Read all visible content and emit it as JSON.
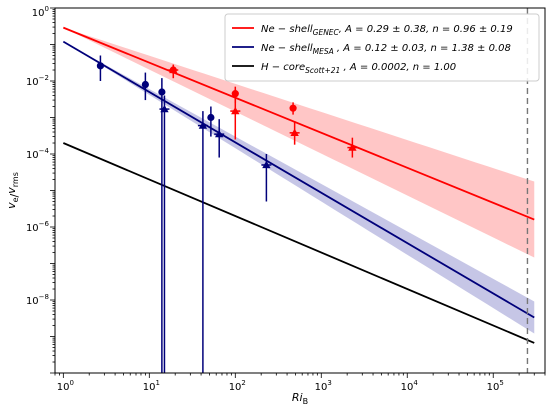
{
  "chart_data": {
    "type": "scatter",
    "title": "",
    "xlabel": "Ri_B",
    "ylabel": "v_e/v_rms",
    "xscale": "log",
    "yscale": "log",
    "xlim": [
      0.8,
      400000
    ],
    "ylim": [
      1e-10,
      1
    ],
    "x_ticks": [
      {
        "value": 1,
        "base": "10",
        "exp": "0"
      },
      {
        "value": 10,
        "base": "10",
        "exp": "1"
      },
      {
        "value": 100,
        "base": "10",
        "exp": "2"
      },
      {
        "value": 1000,
        "base": "10",
        "exp": "3"
      },
      {
        "value": 10000,
        "base": "10",
        "exp": "4"
      },
      {
        "value": 100000,
        "base": "10",
        "exp": "5"
      }
    ],
    "y_ticks": [
      {
        "value": 1e-08,
        "base": "10",
        "exp": "−8"
      },
      {
        "value": 1e-06,
        "base": "10",
        "exp": "−6"
      },
      {
        "value": 0.0001,
        "base": "10",
        "exp": "−4"
      },
      {
        "value": 0.01,
        "base": "10",
        "exp": "−2"
      },
      {
        "value": 1,
        "base": "10",
        "exp": "0"
      }
    ],
    "vertical_marker_x": 250000,
    "legend_position": "top-right",
    "series": [
      {
        "name": "Ne − shell GENEC , A = 0.29 ± 0.38, n = 0.96 ± 0.19",
        "legend_main": "Ne − shell",
        "legend_sub": "GENEC",
        "legend_rest": ", A = 0.29 ± 0.38, n = 0.96 ± 0.19",
        "color": "#ff0000",
        "band_color": "#ffb3b3",
        "fit": {
          "A": 0.29,
          "n": 0.96,
          "x_range": [
            1,
            300000
          ]
        },
        "band": {
          "n_low": 0.77,
          "n_high": 1.15
        },
        "points": [
          {
            "x": 19,
            "y": 0.02,
            "marker": "circle",
            "yerr_lo": 0.012,
            "yerr_hi": 0.028
          },
          {
            "x": 100,
            "y": 0.0045,
            "marker": "circle",
            "yerr_lo": 0.0025,
            "yerr_hi": 0.007
          },
          {
            "x": 470,
            "y": 0.0018,
            "marker": "circle",
            "yerr_lo": 0.0012,
            "yerr_hi": 0.0026
          },
          {
            "x": 19,
            "y": 0.02,
            "marker": "triangle",
            "yerr_lo": 0.012,
            "yerr_hi": 0.028
          },
          {
            "x": 100,
            "y": 0.0015,
            "marker": "triangle",
            "yerr_lo": 0.00025,
            "yerr_hi": 0.006
          },
          {
            "x": 490,
            "y": 0.00038,
            "marker": "triangle",
            "yerr_lo": 0.00018,
            "yerr_hi": 0.0008
          },
          {
            "x": 2300,
            "y": 0.00015,
            "marker": "triangle",
            "yerr_lo": 8e-05,
            "yerr_hi": 0.00028
          }
        ]
      },
      {
        "name": "Ne − shell MESA , A = 0.12 ± 0.03, n = 1.38 ± 0.08",
        "legend_main": "Ne − shell",
        "legend_sub": "MESA",
        "legend_rest": " , A = 0.12 ± 0.03, n = 1.38 ± 0.08",
        "color": "#00007a",
        "band_color": "#b3b3dd",
        "fit": {
          "A": 0.12,
          "n": 1.38,
          "x_range": [
            1,
            300000
          ]
        },
        "band": {
          "n_low": 1.3,
          "n_high": 1.46
        },
        "points": [
          {
            "x": 2.7,
            "y": 0.026,
            "marker": "circle",
            "yerr_lo": 0.01,
            "yerr_hi": 0.05
          },
          {
            "x": 9,
            "y": 0.008,
            "marker": "circle",
            "yerr_lo": 0.003,
            "yerr_hi": 0.017
          },
          {
            "x": 14,
            "y": 0.005,
            "marker": "circle",
            "yerr_lo": 1e-10,
            "yerr_hi": 0.012
          },
          {
            "x": 52,
            "y": 0.001,
            "marker": "circle",
            "yerr_lo": 0.0003,
            "yerr_hi": 0.002
          },
          {
            "x": 15,
            "y": 0.0017,
            "marker": "triangle",
            "yerr_lo": 1e-10,
            "yerr_hi": 0.004
          },
          {
            "x": 42,
            "y": 0.0006,
            "marker": "triangle",
            "yerr_lo": 1e-10,
            "yerr_hi": 0.0015
          },
          {
            "x": 65,
            "y": 0.00035,
            "marker": "triangle",
            "yerr_lo": 8e-05,
            "yerr_hi": 0.0009
          },
          {
            "x": 230,
            "y": 5e-05,
            "marker": "triangle",
            "yerr_lo": 5e-06,
            "yerr_hi": 0.0001
          }
        ]
      },
      {
        "name": "H − core Scott+21 , A = 0.0002, n = 1.00",
        "legend_main": "H − core",
        "legend_sub": "Scott+21",
        "legend_rest": " , A = 0.0002, n = 1.00",
        "color": "#000000",
        "fit": {
          "A": 0.0002,
          "n": 1.0,
          "x_range": [
            1,
            300000
          ]
        },
        "points": []
      }
    ]
  }
}
